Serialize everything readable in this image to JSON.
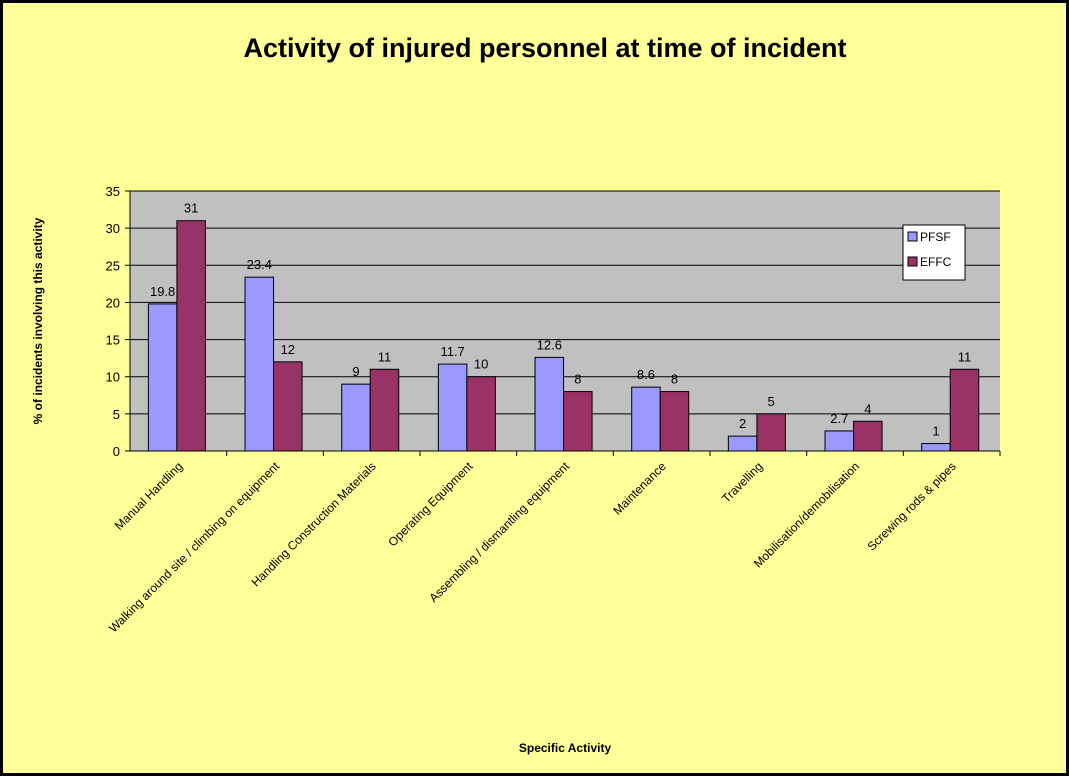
{
  "chart_data": {
    "type": "bar",
    "title": "Activity of injured personnel at time of incident",
    "x_label": "Specific Activity",
    "y_label": "% of incidents involving this activity",
    "categories": [
      "Manual Handling",
      "Walking around site / climbing on equipment",
      "Handling Construction Materials",
      "Operating Equipment",
      "Assembling / dismantling equipment",
      "Maintenance",
      "Travelling",
      "Mobilisation/demobilisation",
      "Screwing rods & pipes"
    ],
    "series": [
      {
        "name": "PFSF",
        "color": "#9999ff",
        "values": [
          19.8,
          23.4,
          9,
          11.7,
          12.6,
          8.6,
          2,
          2.7,
          1
        ]
      },
      {
        "name": "EFFC",
        "color": "#993366",
        "values": [
          31,
          12,
          11,
          10,
          8,
          8,
          5,
          4,
          11
        ]
      }
    ],
    "ylim": [
      0,
      35
    ],
    "yticks": [
      0,
      5,
      10,
      15,
      20,
      25,
      30,
      35
    ],
    "grid": true,
    "legend": "right"
  }
}
